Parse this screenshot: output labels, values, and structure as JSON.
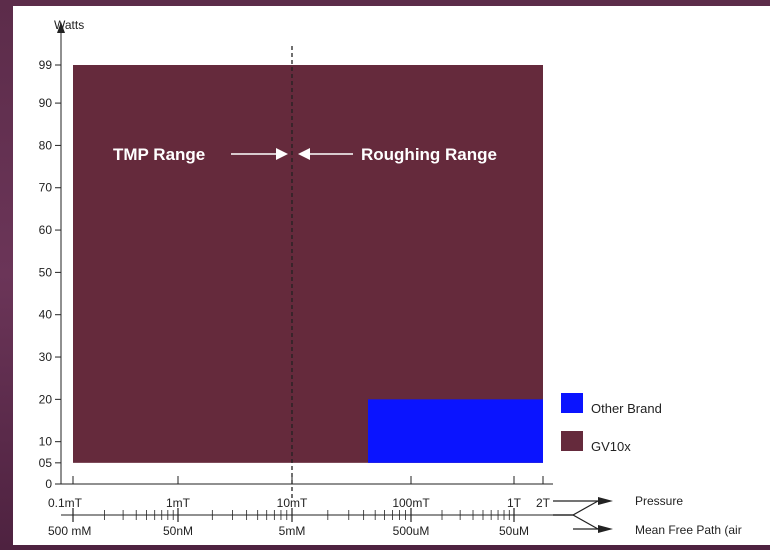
{
  "chart_data": {
    "type": "bar",
    "title": "",
    "ylabel": "Watts",
    "ylim": [
      0,
      99
    ],
    "y_ticks": [
      0,
      5,
      10,
      20,
      30,
      40,
      50,
      60,
      70,
      80,
      90,
      99
    ],
    "y_tick_labels": [
      "0",
      "05",
      "10",
      "20",
      "30",
      "40",
      "50",
      "60",
      "70",
      "80",
      "90",
      "99"
    ],
    "x_pressure": {
      "label": "Pressure",
      "ticks": [
        "0.1mT",
        "1mT",
        "10mT",
        "100mT",
        "1T",
        "2T"
      ]
    },
    "x_mean_free_path": {
      "label": "Mean Free Path (air",
      "ticks": [
        "500 mM",
        "50nM",
        "5mM",
        "500uM",
        "50uM"
      ]
    },
    "series": [
      {
        "name": "GV10x",
        "color": "#652a3c",
        "x_start": "0.1mT",
        "x_end": "2T",
        "y_min": 5,
        "y_max": 99
      },
      {
        "name": "Other Brand",
        "color": "#0a14ff",
        "x_start": "50mT",
        "x_end": "2T",
        "y_min": 5,
        "y_max": 20
      }
    ],
    "divider": {
      "at": "10mT",
      "style": "dashed"
    },
    "annotations": [
      {
        "text": "TMP Range",
        "side": "left",
        "arrow": "right"
      },
      {
        "text": "Roughing Range",
        "side": "right",
        "arrow": "left"
      }
    ],
    "legend": {
      "position": "right",
      "entries": [
        {
          "name": "Other Brand",
          "color": "#0a14ff"
        },
        {
          "name": "GV10x",
          "color": "#652a3c"
        }
      ]
    },
    "grid": false
  }
}
